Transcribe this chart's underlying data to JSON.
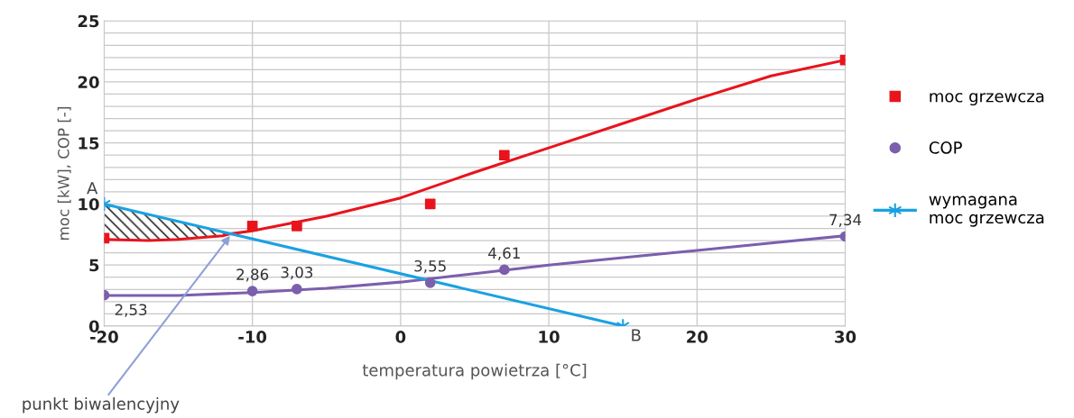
{
  "chart_data": {
    "type": "scatter",
    "xlabel": "temperatura powietrza [°C]",
    "ylabel": "moc [kW], COP [-]",
    "xlim": [
      -20,
      30
    ],
    "xticks": [
      -20,
      -10,
      0,
      10,
      20,
      30
    ],
    "ylim": [
      0,
      25
    ],
    "yticks": [
      0,
      {
        "value": 1,
        "label": null
      },
      {
        "value": 2,
        "label": null
      },
      {
        "value": 3,
        "label": null
      },
      {
        "value": 4,
        "label": null
      },
      5,
      {
        "value": 6,
        "label": null
      },
      {
        "value": 7,
        "label": null
      },
      {
        "value": 8,
        "label": null
      },
      {
        "value": 9,
        "label": null
      },
      10,
      {
        "value": 11,
        "label": null
      },
      {
        "value": 12,
        "label": null
      },
      {
        "value": 13,
        "label": null
      },
      {
        "value": 14,
        "label": null
      },
      15,
      {
        "value": 16,
        "label": null
      },
      {
        "value": 17,
        "label": null
      },
      {
        "value": 18,
        "label": null
      },
      {
        "value": 19,
        "label": null
      },
      20,
      {
        "value": 21,
        "label": null
      },
      {
        "value": 22,
        "label": null
      },
      {
        "value": 23,
        "label": null
      },
      {
        "value": 24,
        "label": null
      },
      25
    ],
    "grid": true,
    "legend": "right",
    "series": [
      {
        "name": "moc grzewcza",
        "marker": "square",
        "color": "#e8141c",
        "x": [
          -20,
          -10,
          -7,
          2,
          7,
          30
        ],
        "values": [
          7.2,
          8.2,
          8.2,
          10,
          14,
          21.8
        ]
      },
      {
        "type": "line",
        "marker": "none",
        "color": "#e8141c",
        "x": [
          -20,
          -17,
          -15,
          -12,
          -11.5,
          -10,
          -5,
          0,
          5,
          10,
          15,
          20,
          25,
          30
        ],
        "values": [
          7.1,
          7.0,
          7.1,
          7.4,
          7.55,
          7.8,
          9.0,
          10.5,
          12.6,
          14.6,
          16.6,
          18.6,
          20.5,
          21.8
        ],
        "lower": [
          7.1,
          7.0,
          7.1,
          7.4,
          7.55,
          null,
          null,
          null,
          null,
          null,
          null,
          null,
          null,
          null
        ],
        "upper": [
          10,
          9.14,
          8.57,
          7.71,
          7.57,
          null,
          null,
          null,
          null,
          null,
          null,
          null,
          null,
          null
        ]
      },
      {
        "name": "COP",
        "marker": "circle",
        "color": "#7b5fad",
        "x": [
          -20,
          -10,
          -7,
          2,
          7,
          30
        ],
        "values": [
          2.53,
          2.86,
          3.03,
          3.55,
          4.61,
          7.34
        ],
        "value_labels": [
          "2,53",
          "2,86",
          "3,03",
          "3,55",
          "4,61",
          "7,34"
        ]
      },
      {
        "type": "line",
        "marker": "none",
        "color": "#7b5fad",
        "x": [
          -20,
          -15,
          -10,
          -5,
          0,
          5,
          10,
          15,
          20,
          25,
          30
        ],
        "values": [
          2.5,
          2.5,
          2.75,
          3.1,
          3.6,
          4.3,
          5.0,
          5.6,
          6.2,
          6.8,
          7.4
        ]
      },
      {
        "name": "wymagana\nmoc grzewcza",
        "type": "line",
        "marker": "cross",
        "color": "#1ba1e2",
        "x": [
          -20,
          15
        ],
        "values": [
          10,
          0
        ]
      }
    ],
    "annotations": [
      {
        "text": "A",
        "x": -20,
        "y": 10
      },
      {
        "text": "B",
        "x": 15,
        "y": 0
      },
      {
        "text": "punkt biwalencyjny",
        "x": -11.5,
        "y": 7.4
      }
    ]
  }
}
